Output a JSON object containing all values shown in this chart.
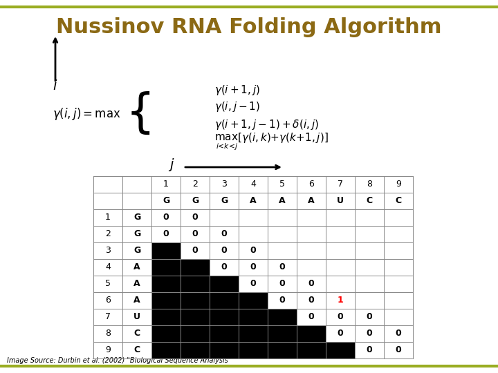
{
  "title": "Nussinov RNA Folding Algorithm",
  "title_color": "#8B6914",
  "bg_color": "#FFFFFF",
  "top_line_color": "#9AAD23",
  "bottom_line_color": "#9AAD23",
  "col_indices": [
    "1",
    "2",
    "3",
    "4",
    "5",
    "6",
    "7",
    "8",
    "9"
  ],
  "col_bases": [
    "G",
    "G",
    "G",
    "A",
    "A",
    "A",
    "U",
    "C",
    "C"
  ],
  "row_indices": [
    "1",
    "2",
    "3",
    "4",
    "5",
    "6",
    "7",
    "8",
    "9"
  ],
  "row_bases": [
    "G",
    "G",
    "G",
    "A",
    "A",
    "A",
    "U",
    "C",
    "C"
  ],
  "matrix": [
    [
      0,
      0,
      null,
      null,
      null,
      null,
      null,
      null,
      null
    ],
    [
      0,
      0,
      0,
      null,
      null,
      null,
      null,
      null,
      null
    ],
    [
      null,
      0,
      0,
      0,
      null,
      null,
      null,
      null,
      null
    ],
    [
      null,
      null,
      0,
      0,
      0,
      null,
      null,
      null,
      null
    ],
    [
      null,
      null,
      null,
      0,
      0,
      0,
      null,
      null,
      null
    ],
    [
      null,
      null,
      null,
      null,
      0,
      0,
      1,
      null,
      null
    ],
    [
      null,
      null,
      null,
      null,
      null,
      0,
      0,
      0,
      null
    ],
    [
      null,
      null,
      null,
      null,
      null,
      null,
      0,
      0,
      0
    ],
    [
      null,
      null,
      null,
      null,
      null,
      null,
      null,
      0,
      0
    ]
  ],
  "special_cell": {
    "row": 5,
    "col": 6,
    "value": "1",
    "color": "#FF0000"
  },
  "black_region": "below_diagonal_minus1",
  "source_text": "Image Source: Durbin et al. (2002) \"Biological Sequence Analysis\"",
  "source_fontsize": 7,
  "formula_text": [
    "\\gamma(i, j) = \\max\\left\\{\\begin{array}{l} \\gamma(i+1, j) \\\\ \\gamma(i, j-1) \\\\ \\gamma(i+1, j-1) + \\delta(i, j) \\\\ \\max_{i<k<j}[\\gamma(i,k)+\\gamma(k+1,j)] \\end{array}\\right.",
    "\\gamma(i+1, j)",
    "\\gamma(i, j-1)",
    "\\gamma(i+1, j-1) + \\delta(i, j)",
    "\\max_{i<k<j}[\\gamma(i,k)+\\gamma(k+1,j)]"
  ]
}
